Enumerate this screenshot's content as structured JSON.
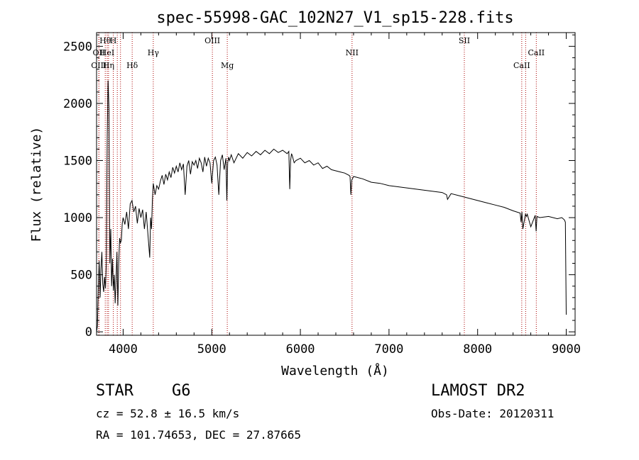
{
  "chart_data": {
    "type": "line",
    "title": "spec-55998-GAC_102N27_V1_sp15-228.fits",
    "xlabel": "Wavelength (Å)",
    "ylabel": "Flux (relative)",
    "xlim": [
      3700,
      9100
    ],
    "ylim": [
      -30,
      2620
    ],
    "xticks": [
      4000,
      5000,
      6000,
      7000,
      8000,
      9000
    ],
    "yticks": [
      0,
      500,
      1000,
      1500,
      2000,
      2500
    ],
    "grid": false,
    "line_color": "#000000",
    "marker_color": "#aa0000",
    "series": [
      {
        "x": [
          3700,
          3710,
          3720,
          3730,
          3740,
          3750,
          3760,
          3770,
          3780,
          3790,
          3800,
          3810,
          3820,
          3830,
          3840,
          3850,
          3860,
          3870,
          3880,
          3890,
          3900,
          3910,
          3920,
          3930,
          3940,
          3950,
          3960,
          3970,
          3980,
          3990,
          4000,
          4020,
          4040,
          4060,
          4080,
          4100,
          4120,
          4140,
          4160,
          4180,
          4200,
          4220,
          4240,
          4260,
          4280,
          4300,
          4310,
          4320,
          4330,
          4340,
          4360,
          4380,
          4400,
          4420,
          4440,
          4460,
          4480,
          4500,
          4520,
          4540,
          4560,
          4580,
          4600,
          4620,
          4640,
          4660,
          4680,
          4700,
          4720,
          4740,
          4760,
          4780,
          4800,
          4820,
          4840,
          4860,
          4880,
          4900,
          4920,
          4940,
          4960,
          4980,
          5000,
          5020,
          5040,
          5060,
          5080,
          5100,
          5120,
          5140,
          5160,
          5170,
          5180,
          5190,
          5200,
          5220,
          5250,
          5300,
          5350,
          5400,
          5450,
          5500,
          5550,
          5600,
          5650,
          5700,
          5750,
          5800,
          5850,
          5870,
          5880,
          5890,
          5900,
          5910,
          5930,
          5950,
          6000,
          6050,
          6100,
          6150,
          6200,
          6250,
          6300,
          6350,
          6400,
          6450,
          6500,
          6550,
          6560,
          6565,
          6570,
          6580,
          6600,
          6700,
          6800,
          6900,
          7000,
          7100,
          7200,
          7300,
          7400,
          7500,
          7600,
          7650,
          7660,
          7700,
          7800,
          7900,
          8000,
          8100,
          8200,
          8300,
          8400,
          8480,
          8490,
          8500,
          8510,
          8540,
          8550,
          8560,
          8600,
          8650,
          8660,
          8670,
          8700,
          8800,
          8900,
          8950,
          8980,
          8990,
          9000
        ],
        "y": [
          0,
          50,
          400,
          620,
          300,
          550,
          700,
          420,
          350,
          480,
          380,
          600,
          1700,
          2200,
          1950,
          600,
          900,
          400,
          640,
          360,
          500,
          250,
          460,
          700,
          230,
          600,
          820,
          780,
          800,
          950,
          1000,
          940,
          1050,
          900,
          1120,
          1150,
          1050,
          1100,
          950,
          1080,
          1000,
          1070,
          900,
          1050,
          850,
          650,
          1000,
          900,
          1150,
          1300,
          1200,
          1280,
          1250,
          1320,
          1370,
          1290,
          1380,
          1330,
          1400,
          1350,
          1440,
          1390,
          1450,
          1400,
          1480,
          1420,
          1470,
          1200,
          1450,
          1500,
          1380,
          1490,
          1460,
          1500,
          1430,
          1520,
          1480,
          1400,
          1530,
          1450,
          1520,
          1480,
          1300,
          1500,
          1530,
          1460,
          1200,
          1500,
          1550,
          1420,
          1520,
          1150,
          1480,
          1530,
          1500,
          1550,
          1480,
          1560,
          1520,
          1570,
          1540,
          1580,
          1550,
          1590,
          1560,
          1600,
          1570,
          1590,
          1560,
          1580,
          1250,
          1500,
          1560,
          1540,
          1480,
          1500,
          1520,
          1480,
          1500,
          1460,
          1480,
          1430,
          1450,
          1420,
          1410,
          1400,
          1390,
          1370,
          1360,
          1280,
          1200,
          1330,
          1360,
          1340,
          1310,
          1300,
          1280,
          1270,
          1260,
          1250,
          1240,
          1230,
          1220,
          1200,
          1160,
          1210,
          1190,
          1170,
          1150,
          1130,
          1110,
          1090,
          1060,
          1040,
          960,
          1050,
          900,
          1030,
          1010,
          1030,
          920,
          1020,
          880,
          1010,
          1000,
          1010,
          990,
          1000,
          980,
          960,
          150
        ]
      }
    ],
    "lines": [
      {
        "label": "Hθ",
        "x": 3798,
        "row": 0
      },
      {
        "label": "H",
        "x": 3889,
        "row": 0
      },
      {
        "label": "OII",
        "x": 3727,
        "row": 1
      },
      {
        "label": "HeI",
        "x": 3820,
        "row": 1
      },
      {
        "label": "Hγ",
        "x": 4340,
        "row": 1
      },
      {
        "label": "OIII",
        "x": 5007,
        "row": -1
      },
      {
        "label": "NII",
        "x": 6583,
        "row": 1
      },
      {
        "label": "SII",
        "x": 7850,
        "row": -1
      },
      {
        "label": "CaII",
        "x": 8662,
        "row": 1
      },
      {
        "label": "OIII",
        "x": 3726,
        "row": 2
      },
      {
        "label": "Hη",
        "x": 3835,
        "row": 2
      },
      {
        "label": "Hδ",
        "x": 4102,
        "row": 2
      },
      {
        "label": "Mg",
        "x": 5175,
        "row": 2
      },
      {
        "label": "CaII",
        "x": 8498,
        "row": 2
      },
      {
        "label": "",
        "x": 3970,
        "row": -9
      },
      {
        "label": "",
        "x": 3934,
        "row": -9
      },
      {
        "label": "",
        "x": 8542,
        "row": -9
      }
    ]
  },
  "info": {
    "class": "STAR",
    "subclass": "G6",
    "cz": "cz = 52.8 ± 16.5 km/s",
    "radec": "RA = 101.74653, DEC =  27.87665",
    "survey": "LAMOST DR2",
    "obsdate": "Obs-Date: 20120311"
  }
}
